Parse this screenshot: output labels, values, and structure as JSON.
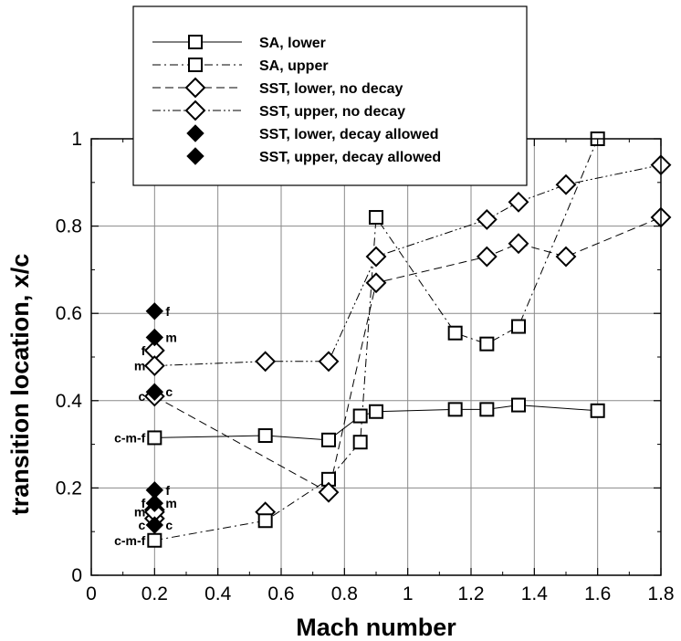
{
  "chart_data": {
    "type": "scatter",
    "title": "",
    "xlabel": "Mach number",
    "ylabel": "transition location, x/c",
    "xlim": [
      0,
      1.8
    ],
    "ylim": [
      0,
      1
    ],
    "xticks": [
      "0",
      "0.2",
      "0.4",
      "0.6",
      "0.8",
      "1",
      "1.2",
      "1.4",
      "1.6",
      "1.8"
    ],
    "yticks": [
      "0",
      "0.2",
      "0.4",
      "0.6",
      "0.8",
      "1"
    ],
    "grid": true,
    "legend_position": "top-center",
    "series": [
      {
        "name": "SA, lower",
        "marker": "square-open",
        "line": "solid",
        "points": [
          [
            0.2,
            0.315
          ],
          [
            0.55,
            0.32
          ],
          [
            0.75,
            0.31
          ],
          [
            0.85,
            0.365
          ],
          [
            0.9,
            0.375
          ],
          [
            1.15,
            0.38
          ],
          [
            1.25,
            0.38
          ],
          [
            1.35,
            0.39
          ],
          [
            1.6,
            0.377
          ]
        ]
      },
      {
        "name": "SA, upper",
        "marker": "square-open",
        "line": "dashdot",
        "points": [
          [
            0.2,
            0.08
          ],
          [
            0.55,
            0.125
          ],
          [
            0.75,
            0.22
          ],
          [
            0.85,
            0.305
          ],
          [
            0.9,
            0.82
          ],
          [
            1.15,
            0.555
          ],
          [
            1.25,
            0.53
          ],
          [
            1.35,
            0.57
          ],
          [
            1.6,
            1.0
          ]
        ]
      },
      {
        "name": "SST, lower, no decay",
        "marker": "diamond-open",
        "line": "dashed",
        "points": [
          [
            0.2,
            0.41
          ],
          [
            0.75,
            0.19
          ],
          [
            0.9,
            0.67
          ],
          [
            1.25,
            0.73
          ],
          [
            1.35,
            0.76
          ],
          [
            1.5,
            0.73
          ],
          [
            1.8,
            0.82
          ]
        ]
      },
      {
        "name": "SST, upper, no decay",
        "marker": "diamond-open",
        "line": "dashdotdot",
        "points": [
          [
            0.2,
            0.48
          ],
          [
            0.55,
            0.49
          ],
          [
            0.75,
            0.49
          ],
          [
            0.9,
            0.73
          ],
          [
            1.25,
            0.815
          ],
          [
            1.35,
            0.855
          ],
          [
            1.5,
            0.895
          ],
          [
            1.8,
            0.94
          ]
        ]
      },
      {
        "name": "SST, lower, decay allowed",
        "marker": "diamond-filled",
        "line": "none",
        "points": [
          [
            0.2,
            0.195
          ],
          [
            0.2,
            0.165
          ],
          [
            0.2,
            0.115
          ]
        ]
      },
      {
        "name": "SST, upper, decay allowed",
        "marker": "diamond-filled",
        "line": "none",
        "points": [
          [
            0.2,
            0.605
          ],
          [
            0.2,
            0.545
          ],
          [
            0.2,
            0.42
          ]
        ]
      }
    ],
    "extra_open_diamonds": [
      [
        0.2,
        0.515
      ],
      [
        0.2,
        0.15
      ],
      [
        0.2,
        0.13
      ],
      [
        0.2,
        0.145
      ],
      [
        0.55,
        0.145
      ]
    ],
    "annotations": [
      {
        "text": "f",
        "x": 0.2,
        "y": 0.605,
        "side": "right"
      },
      {
        "text": "m",
        "x": 0.2,
        "y": 0.545,
        "side": "right"
      },
      {
        "text": "f",
        "x": 0.2,
        "y": 0.515,
        "side": "left"
      },
      {
        "text": "m",
        "x": 0.2,
        "y": 0.48,
        "side": "left"
      },
      {
        "text": "c",
        "x": 0.2,
        "y": 0.42,
        "side": "right"
      },
      {
        "text": "c",
        "x": 0.2,
        "y": 0.41,
        "side": "left"
      },
      {
        "text": "c-m-f",
        "x": 0.2,
        "y": 0.315,
        "side": "left"
      },
      {
        "text": "f",
        "x": 0.2,
        "y": 0.195,
        "side": "right"
      },
      {
        "text": "f",
        "x": 0.2,
        "y": 0.165,
        "side": "left"
      },
      {
        "text": "m",
        "x": 0.2,
        "y": 0.165,
        "side": "right"
      },
      {
        "text": "m",
        "x": 0.2,
        "y": 0.145,
        "side": "left"
      },
      {
        "text": "c",
        "x": 0.2,
        "y": 0.115,
        "side": "right"
      },
      {
        "text": "c",
        "x": 0.2,
        "y": 0.115,
        "side": "left"
      },
      {
        "text": "c-m-f",
        "x": 0.2,
        "y": 0.08,
        "side": "left"
      }
    ]
  }
}
